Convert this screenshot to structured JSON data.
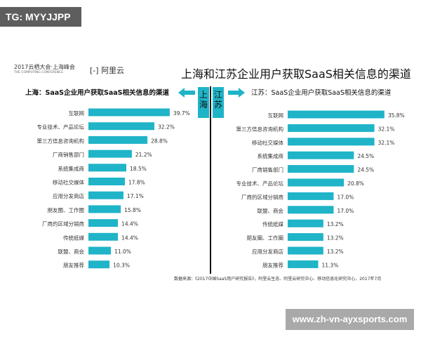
{
  "tag": "TG: MYYJJPP",
  "logo": {
    "text": "2017云栖大会·上海峰会",
    "sub": "THE COMPUTING CONFERENCE",
    "brand": "阿里云"
  },
  "watermark_url": "www.zh-vn-ayxsports.com",
  "source": "数据来源：《2017中国SaaS用户研究报告》，阿里云生态、阿里云研究中心、移动信息化研究中心，2017年7月",
  "center_labels": {
    "left": "上海",
    "right": "江苏"
  },
  "colors": {
    "bar": "#1fb4c8"
  },
  "chart_data": [
    {
      "type": "bar",
      "orientation": "horizontal",
      "title": "上海：SaaS企业用户获取SaaS相关信息的渠道",
      "categories": [
        "互联网",
        "专业技术、产品论坛",
        "第三方信息咨询机构",
        "厂商销售部门",
        "系统集成商",
        "移动社交媒体",
        "应用分发商店",
        "朋友圈、工作圈",
        "厂商的区域分销商",
        "传统纸媒",
        "联盟、商会",
        "朋友推荐"
      ],
      "values": [
        39.7,
        32.2,
        28.8,
        21.2,
        18.5,
        17.8,
        17.1,
        15.8,
        14.4,
        14.4,
        11.0,
        10.3
      ],
      "labels": [
        "39.7%",
        "32.2%",
        "28.8%",
        "21.2%",
        "18.5%",
        "17.8%",
        "17.1%",
        "15.8%",
        "14.4%",
        "14.4%",
        "11.0%",
        "10.3%"
      ]
    },
    {
      "type": "bar",
      "orientation": "horizontal",
      "title": "江苏：SaaS企业用户获取SaaS相关信息的渠道",
      "categories": [
        "互联网",
        "第三方信息咨询机构",
        "移动社交媒体",
        "系统集成商",
        "厂商销售部门",
        "专业技术、产品论坛",
        "厂商的区域分销商",
        "联盟、商会",
        "传统纸媒",
        "朋友圈、工作圈",
        "应用分发商店",
        "朋友推荐"
      ],
      "values": [
        35.8,
        32.1,
        32.1,
        24.5,
        24.5,
        20.8,
        17.0,
        17.0,
        13.2,
        13.2,
        13.2,
        11.3
      ],
      "labels": [
        "35.8%",
        "32.1%",
        "32.1%",
        "24.5%",
        "24.5%",
        "20.8%",
        "17.0%",
        "17.0%",
        "13.2%",
        "13.2%",
        "13.2%",
        "11.3%"
      ]
    }
  ],
  "main_title": "上海和江苏企业用户获取SaaS相关信息的渠道"
}
